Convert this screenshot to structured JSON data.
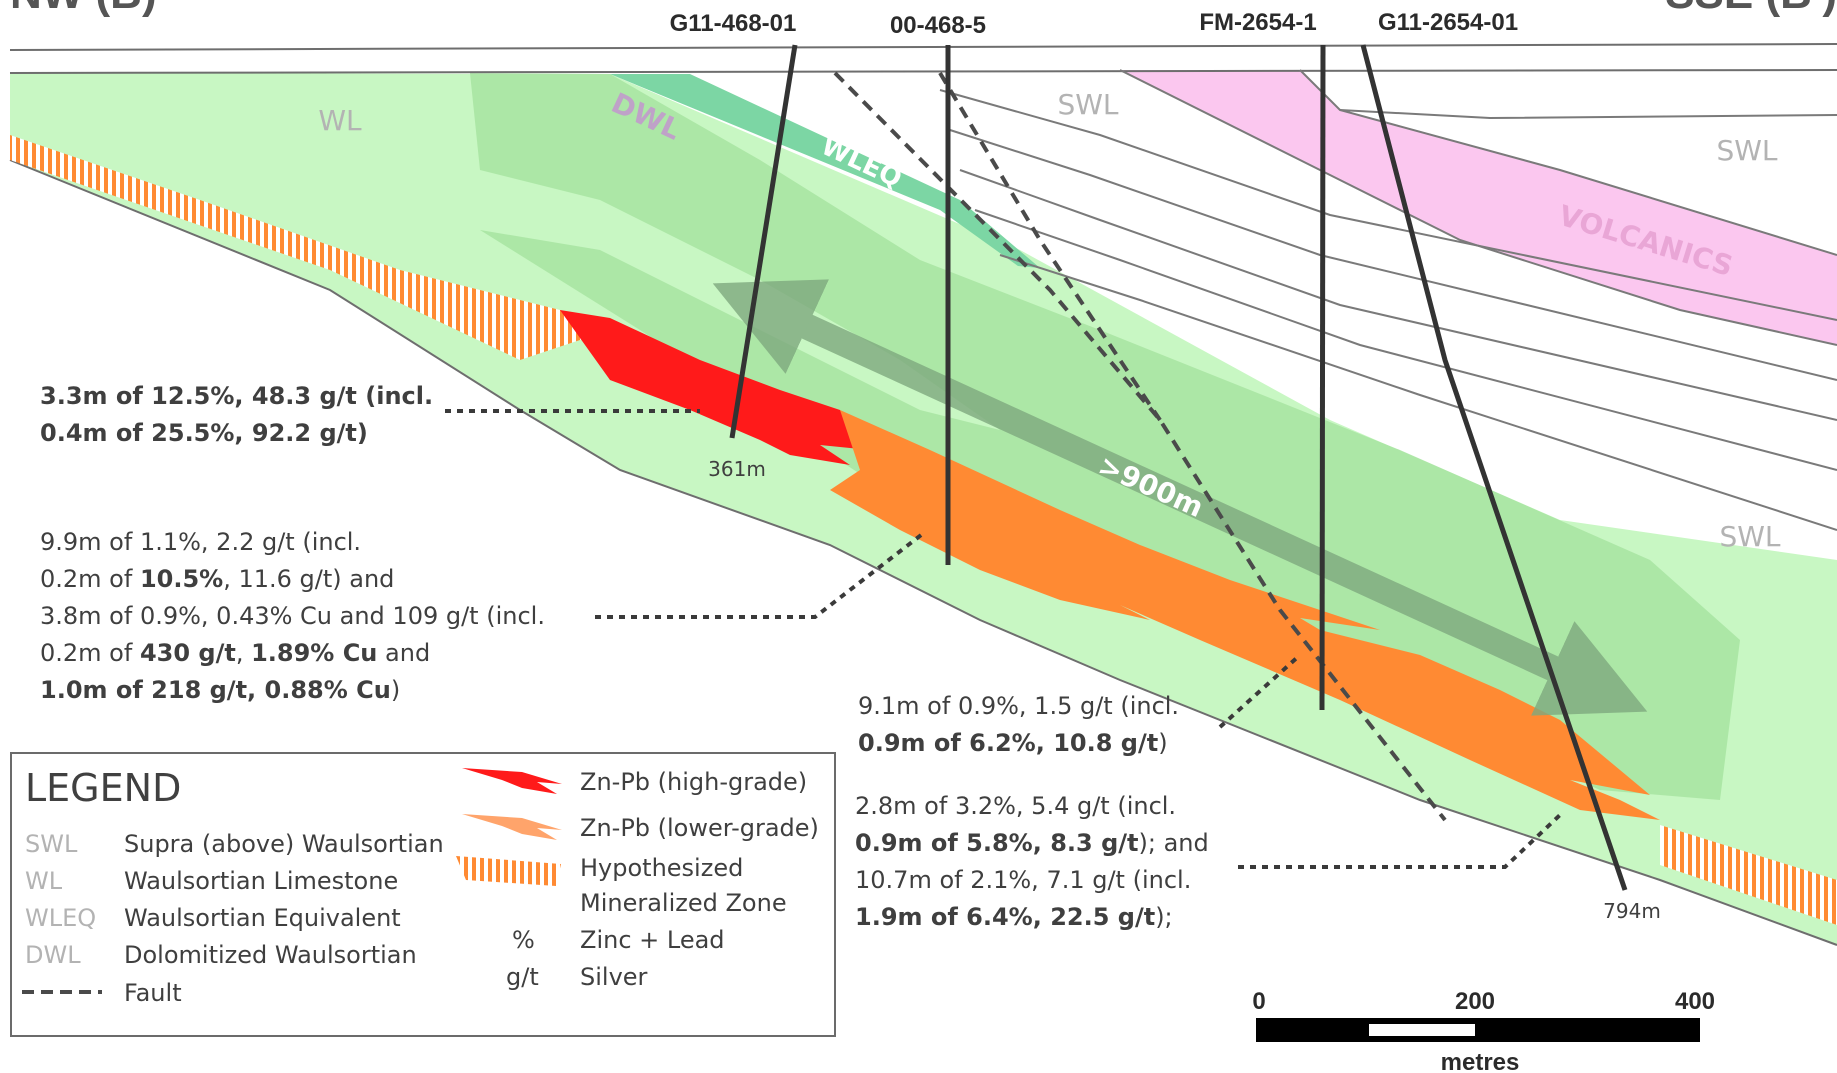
{
  "header": {
    "left_partial": "NW (B)",
    "right_partial": "SSE (B')"
  },
  "drillholes": [
    {
      "id": "G11-468-01",
      "depth": "361m"
    },
    {
      "id": "00-468-5",
      "depth": ""
    },
    {
      "id": "FM-2654-1",
      "depth": ""
    },
    {
      "id": "G11-2654-01",
      "depth": "794m"
    }
  ],
  "unit_labels": {
    "wl": "WL",
    "dwl": "DWL",
    "wleq": "WLEQ",
    "swl_top": "SWL",
    "swl_right": "SWL",
    "swl_lower": "SWL",
    "volcanics": "VOLCANICS",
    "extent": ">900m"
  },
  "annotations": {
    "a1": {
      "l1a": "3.3m of 12.5%, 48.3 g/t (incl.",
      "l2a": "0.4m of 25.5%, 92.2 g/t)"
    },
    "a2": {
      "l1": "9.9m of 1.1%, 2.2 g/t (incl.",
      "l2a": "0.2m of ",
      "l2b": "10.5%",
      "l2c": ", 11.6 g/t) and",
      "l3": "3.8m of 0.9%, 0.43% Cu and 109 g/t (incl.",
      "l4a": "0.2m of ",
      "l4b": "430 g/t",
      "l4c": ", ",
      "l4d": "1.89% Cu",
      "l4e": " and",
      "l5a": "1.0m of 218 g/t, 0.88% Cu",
      "l5b": ")"
    },
    "a3": {
      "l1": "9.1m of 0.9%, 1.5 g/t (incl.",
      "l2a": "0.9m of 6.2%, 10.8 g/t",
      "l2b": ")"
    },
    "a4": {
      "l1": "2.8m of 3.2%, 5.4 g/t (incl.",
      "l2a": "0.9m of 5.8%, 8.3 g/t",
      "l2b": "); and",
      "l3": "10.7m of 2.1%, 7.1 g/t (incl.",
      "l4a": "1.9m of 6.4%, 22.5 g/t",
      "l4b": ");"
    }
  },
  "legend": {
    "title": "LEGEND",
    "units": [
      {
        "abbr": "SWL",
        "desc": "Supra (above) Waulsortian"
      },
      {
        "abbr": "WL",
        "desc": "Waulsortian Limestone"
      },
      {
        "abbr": "WLEQ",
        "desc": "Waulsortian Equivalent"
      },
      {
        "abbr": "DWL",
        "desc": "Dolomitized Waulsortian"
      }
    ],
    "fault_label": "Fault",
    "symbols": [
      {
        "desc": "Zn-Pb (high-grade)"
      },
      {
        "desc": "Zn-Pb (lower-grade)"
      },
      {
        "desc": "Hypothesized"
      },
      {
        "desc": "Mineralized Zone"
      }
    ],
    "units2": [
      {
        "abbr": "%",
        "desc": "Zinc + Lead"
      },
      {
        "abbr": "g/t",
        "desc": "Silver"
      }
    ]
  },
  "scale": {
    "ticks": [
      "0",
      "200",
      "400"
    ],
    "unit": "metres"
  },
  "colors": {
    "wl_green": "#c8f7c3",
    "dwl_green": "#a3e19c",
    "wleq_green": "#7cd6a4",
    "volcanics_pink": "#fbc7ef",
    "high_grade_red": "#ff1a1a",
    "low_grade_orange": "#ff8a33",
    "line_gray": "#6e6e6e",
    "drill_dark": "#333333"
  }
}
